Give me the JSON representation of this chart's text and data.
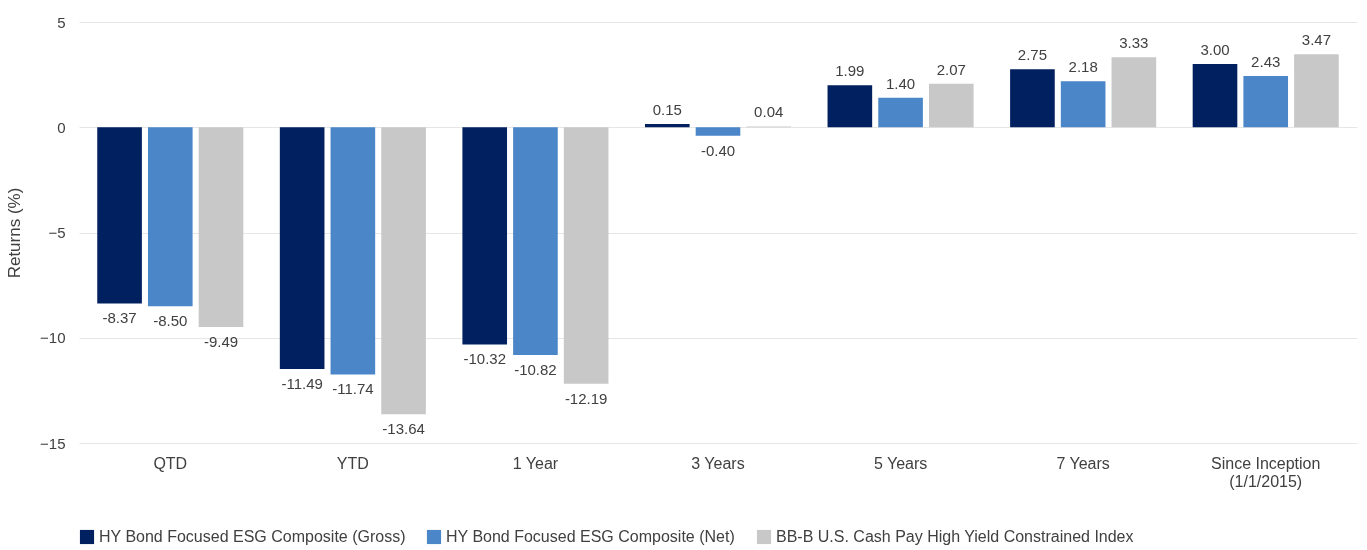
{
  "chart_data": {
    "type": "bar",
    "ylabel": "Returns (%)",
    "categories": [
      "QTD",
      "YTD",
      "1 Year",
      "3 Years",
      "5 Years",
      "7 Years",
      "Since Inception\n(1/1/2015)"
    ],
    "series": [
      {
        "name": "HY Bond Focused ESG Composite (Gross)",
        "color": "#002060",
        "values": [
          -8.37,
          -11.49,
          -10.32,
          0.15,
          1.99,
          2.75,
          3.0
        ],
        "value_labels": [
          "-8.37",
          "-11.49",
          "-10.32",
          "0.15",
          "1.99",
          "2.75",
          "3.00"
        ]
      },
      {
        "name": "HY Bond Focused ESG Composite (Net)",
        "color": "#4a86c8",
        "values": [
          -8.5,
          -11.74,
          -10.82,
          -0.4,
          1.4,
          2.18,
          2.43
        ],
        "value_labels": [
          "-8.50",
          "-11.74",
          "-10.82",
          "-0.40",
          "1.40",
          "2.18",
          "2.43"
        ]
      },
      {
        "name": "BB-B U.S. Cash Pay High Yield Constrained Index",
        "color": "#c8c8c8",
        "values": [
          -9.49,
          -13.64,
          -12.19,
          0.04,
          2.07,
          3.33,
          3.47
        ],
        "value_labels": [
          "-9.49",
          "-13.64",
          "-12.19",
          "0.04",
          "2.07",
          "3.33",
          "3.47"
        ]
      }
    ],
    "ylim": [
      -15,
      5
    ],
    "yticks": [
      -15,
      -10,
      -5,
      0,
      5
    ],
    "grid": "y",
    "legend": "bottom"
  }
}
